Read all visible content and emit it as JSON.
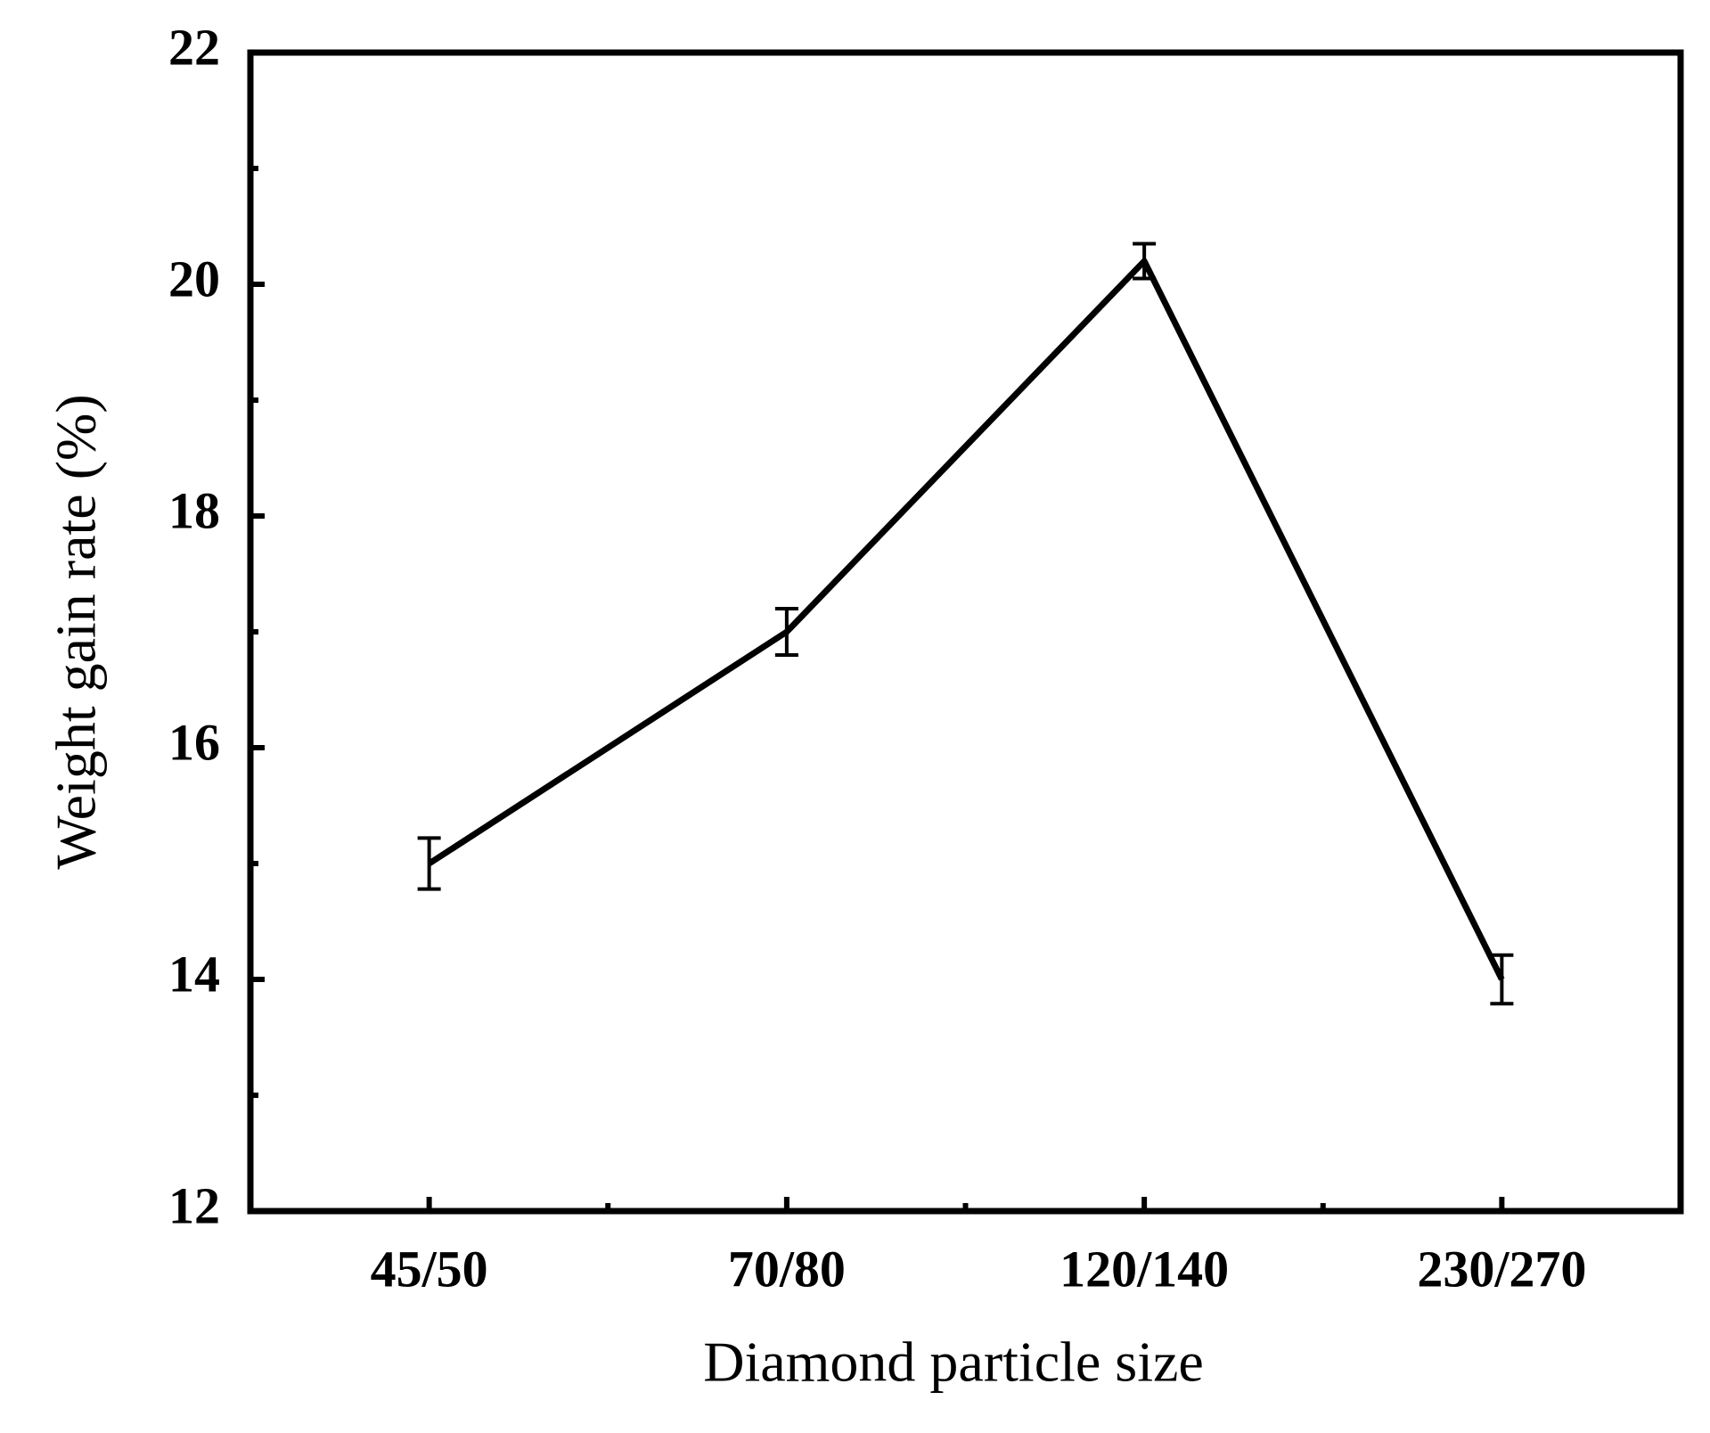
{
  "chart_data": {
    "type": "line",
    "x_label": "Diamond particle size",
    "y_label": "Weight gain rate (%)",
    "categories": [
      "45/50",
      "70/80",
      "120/140",
      "230/270"
    ],
    "series": [
      {
        "color": "#000000",
        "values": [
          15.0,
          17.0,
          20.2,
          14.0
        ],
        "errors": [
          0.22,
          0.2,
          0.15,
          0.21
        ]
      }
    ],
    "ylim": [
      12,
      22
    ],
    "yticks": [
      12,
      14,
      16,
      18,
      20,
      22
    ],
    "yminorticks": [
      13,
      15,
      17,
      19,
      21
    ],
    "grid": false
  }
}
